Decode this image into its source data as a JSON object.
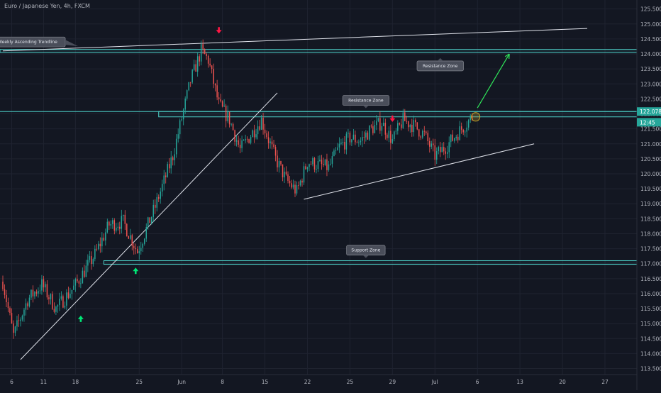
{
  "header": {
    "title": "Euro / Japanese Yen, 4h, FXCM"
  },
  "colors": {
    "background": "#131722",
    "grid": "#1f2330",
    "axis_text": "#b2b5be",
    "bull": "#26a69a",
    "bear": "#ef5350",
    "zone_line": "#4dd0c8",
    "trendline": "#e0e3eb",
    "arrow_up": "#00e676",
    "arrow_down": "#ff1744",
    "target_arrow": "#2fe65a",
    "callout_bg": "#4a4e5a",
    "price_badge": "#26a69a",
    "breakout_circle": "#c9a227"
  },
  "chart_data": {
    "type": "candlestick",
    "title": "Euro / Japanese Yen, 4h, FXCM",
    "ylim": [
      113.3,
      125.8
    ],
    "y_ticks": [
      113.5,
      114.0,
      114.5,
      115.0,
      115.5,
      116.0,
      116.5,
      117.0,
      117.5,
      118.0,
      118.5,
      119.0,
      119.5,
      120.0,
      120.5,
      121.0,
      121.5,
      122.0,
      122.5,
      123.0,
      123.5,
      124.0,
      124.5,
      125.0,
      125.5
    ],
    "y_tick_labels": [
      "113.500",
      "114.000",
      "114.500",
      "115.000",
      "115.500",
      "116.000",
      "116.500",
      "117.000",
      "117.500",
      "118.000",
      "118.500",
      "119.000",
      "119.500",
      "120.000",
      "120.500",
      "121.000",
      "121.500",
      "122.000",
      "122.500",
      "123.000",
      "123.500",
      "124.000",
      "124.500",
      "125.000",
      "125.500"
    ],
    "x_index_range": [
      0,
      330
    ],
    "x_ticks": [
      {
        "i": 5,
        "label": "6"
      },
      {
        "i": 23,
        "label": "11"
      },
      {
        "i": 41,
        "label": "18"
      },
      {
        "i": 77,
        "label": "25"
      },
      {
        "i": 101,
        "label": "Jun"
      },
      {
        "i": 124,
        "label": "8"
      },
      {
        "i": 148,
        "label": "15"
      },
      {
        "i": 172,
        "label": "22"
      },
      {
        "i": 196,
        "label": "25"
      },
      {
        "i": 220,
        "label": "29"
      },
      {
        "i": 244,
        "label": "Jul"
      },
      {
        "i": 268,
        "label": "6"
      },
      {
        "i": 292,
        "label": "13"
      },
      {
        "i": 316,
        "label": "20"
      },
      {
        "i": 340,
        "label": "27"
      }
    ],
    "price_path": [
      [
        0,
        116.4
      ],
      [
        6,
        114.6
      ],
      [
        14,
        115.8
      ],
      [
        22,
        116.3
      ],
      [
        30,
        115.5
      ],
      [
        40,
        116.2
      ],
      [
        52,
        117.3
      ],
      [
        60,
        118.3
      ],
      [
        68,
        118.4
      ],
      [
        76,
        117.4
      ],
      [
        86,
        118.9
      ],
      [
        96,
        120.6
      ],
      [
        106,
        123.1
      ],
      [
        112,
        124.1
      ],
      [
        116,
        123.8
      ],
      [
        122,
        122.3
      ],
      [
        128,
        121.8
      ],
      [
        134,
        120.8
      ],
      [
        140,
        121.3
      ],
      [
        146,
        121.8
      ],
      [
        154,
        120.5
      ],
      [
        160,
        119.8
      ],
      [
        166,
        119.4
      ],
      [
        172,
        120.4
      ],
      [
        178,
        120.3
      ],
      [
        184,
        120.2
      ],
      [
        190,
        120.9
      ],
      [
        196,
        121.2
      ],
      [
        202,
        121.1
      ],
      [
        208,
        121.5
      ],
      [
        214,
        121.7
      ],
      [
        220,
        121.1
      ],
      [
        226,
        121.8
      ],
      [
        232,
        121.6
      ],
      [
        238,
        121.3
      ],
      [
        244,
        120.6
      ],
      [
        250,
        120.9
      ],
      [
        256,
        121.3
      ],
      [
        262,
        121.7
      ],
      [
        265,
        121.9
      ]
    ],
    "levels": [
      {
        "name": "resistance-zone-upper",
        "top": 124.15,
        "bottom": 124.05
      },
      {
        "name": "resistance-zone-lower",
        "top": 122.08,
        "bottom": 121.9,
        "start": 88
      },
      {
        "name": "support-zone",
        "top": 117.1,
        "bottom": 116.98,
        "start": 57
      }
    ],
    "trendlines": [
      {
        "name": "weekly-ascending-trendline",
        "from": [
          0,
          124.1
        ],
        "to": [
          330,
          124.85
        ]
      },
      {
        "name": "rising-support-trendline",
        "from": [
          10,
          113.8
        ],
        "to": [
          155,
          122.7
        ]
      },
      {
        "name": "ascending-triangle-support",
        "from": [
          170,
          119.15
        ],
        "to": [
          300,
          121.0
        ]
      }
    ],
    "annotations": {
      "callouts": [
        {
          "name": "weekly-trendline-callout",
          "text": "Weekly Ascending Trendline",
          "i": 14,
          "price": 124.4,
          "pointer": "right"
        },
        {
          "name": "resistance-zone-top-callout",
          "text": "Resistance Zone",
          "i": 247,
          "price": 123.6,
          "pointer": "up"
        },
        {
          "name": "resistance-zone-mid-callout",
          "text": "Resistance Zone",
          "i": 205,
          "price": 122.45,
          "pointer": "down"
        },
        {
          "name": "support-zone-callout",
          "text": "Support Zone",
          "i": 205,
          "price": 117.45,
          "pointer": "down"
        }
      ],
      "up_arrows": [
        {
          "i": 44,
          "price": 115.15
        },
        {
          "i": 75,
          "price": 116.75
        }
      ],
      "down_arrows": [
        {
          "i": 122,
          "price": 124.8
        },
        {
          "i": 220,
          "price": 121.85
        }
      ],
      "target_arrow": {
        "from": [
          268,
          122.2
        ],
        "to": [
          286,
          124.0
        ]
      },
      "breakout_circle": {
        "i": 267,
        "price": 121.9
      }
    },
    "price_badges": [
      {
        "name": "current-price-badge",
        "text": "122.078",
        "price": 122.078
      },
      {
        "name": "timer-badge",
        "text": "12:45",
        "price": 121.72
      }
    ]
  }
}
